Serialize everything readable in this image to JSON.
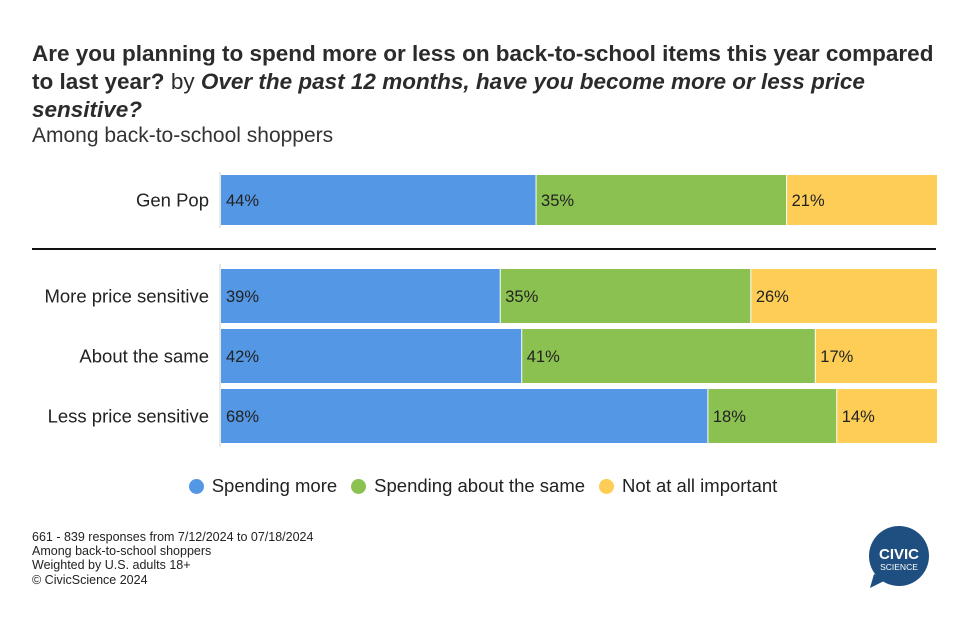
{
  "title": {
    "question1": "Are you planning to spend more or less on back-to-school items this year compared to last year?",
    "by": "by",
    "question2": "Over the past 12 months, have you become more or less price sensitive?"
  },
  "subtitle": "Among back-to-school shoppers",
  "colors": {
    "spending_more": "#5497e4",
    "spending_same": "#8bc151",
    "not_important": "#fdcd55"
  },
  "chart_data": {
    "type": "bar",
    "orientation": "horizontal",
    "stacked": true,
    "percent_scale": [
      0,
      100
    ],
    "categories": [
      "Gen Pop",
      "More price sensitive",
      "About the same",
      "Less price sensitive"
    ],
    "series": [
      {
        "name": "Spending more",
        "values": [
          44,
          39,
          42,
          68
        ],
        "labels": [
          "44%",
          "39%",
          "42%",
          "68%"
        ]
      },
      {
        "name": "Spending about the same",
        "values": [
          35,
          35,
          41,
          18
        ],
        "labels": [
          "35%",
          "35%",
          "41%",
          "18%"
        ]
      },
      {
        "name": "Not at all important",
        "values": [
          21,
          26,
          17,
          14
        ],
        "labels": [
          "21%",
          "26%",
          "17%",
          "14%"
        ]
      }
    ],
    "legend_position": "bottom",
    "grid": false
  },
  "legend": [
    {
      "label": "Spending more",
      "color": "#5497e4"
    },
    {
      "label": "Spending about the same",
      "color": "#8bc151"
    },
    {
      "label": "Not at all important",
      "color": "#fdcd55"
    }
  ],
  "footnote": [
    "661 - 839 responses from 7/12/2024 to 07/18/2024",
    "Among back-to-school shoppers",
    "Weighted by U.S. adults 18+",
    "© CivicScience 2024"
  ],
  "logo": {
    "line1": "CIVIC",
    "line2": "SCIENCE",
    "color": "#1e4f80"
  }
}
